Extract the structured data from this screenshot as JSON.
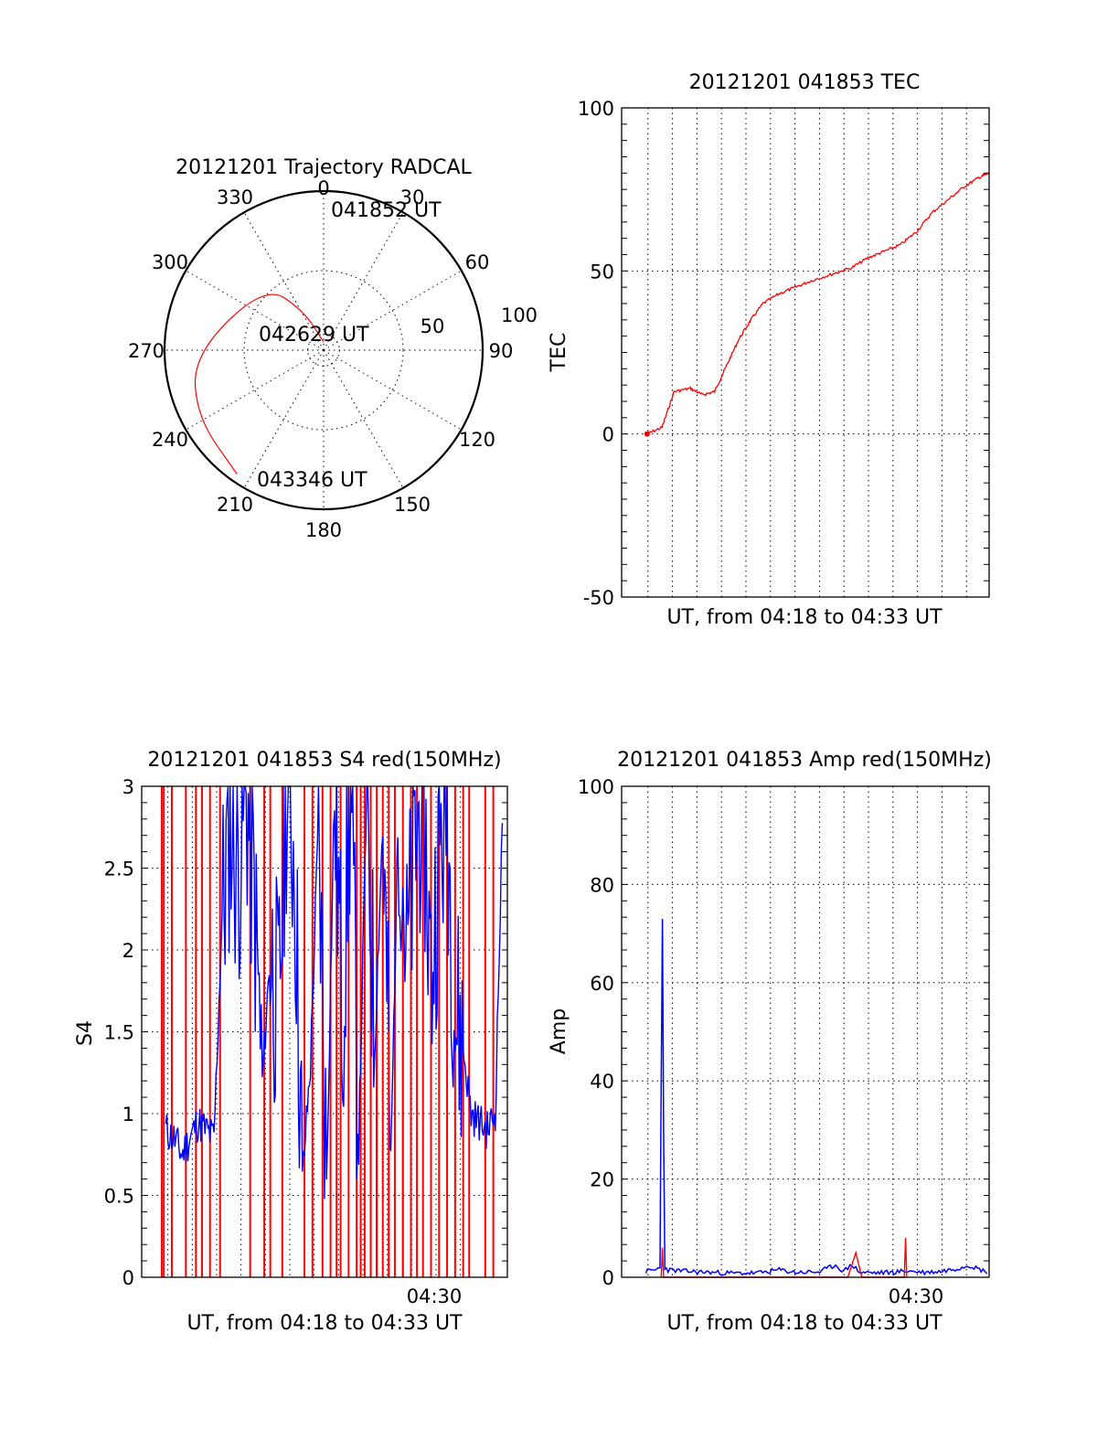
{
  "chart_data": [
    {
      "type": "polar",
      "title": "20121201 Trajectory RADCAL",
      "angle_labels": [
        "0",
        "30",
        "60",
        "90",
        "120",
        "150",
        "180",
        "210",
        "240",
        "270",
        "300",
        "330"
      ],
      "radius_labels": [
        "50",
        "100"
      ],
      "rlim": [
        0,
        100
      ],
      "annotations": [
        "041852 UT",
        "042629 UT",
        "043346 UT"
      ],
      "series": [
        {
          "color": "#ff0000",
          "points_az_el": [
            [
              1,
              95
            ],
            [
              333,
              72
            ],
            [
              318,
              45
            ],
            [
              268,
              18
            ],
            [
              242,
              10
            ],
            [
              215,
              5
            ]
          ]
        }
      ]
    },
    {
      "type": "line",
      "title": "20121201 041853 TEC",
      "ylabel": "TEC",
      "xlabel": "UT, from 04:18 to 04:33 UT",
      "ylim": [
        -50,
        100
      ],
      "xlim": [
        "04:17:50",
        "04:33:00"
      ],
      "yticks": [
        "-50",
        "0",
        "50",
        "100"
      ],
      "grid": true,
      "series": [
        {
          "color": "#ff0000",
          "x": [
            "04:18:53",
            "04:19:30",
            "04:20:00",
            "04:20:40",
            "04:21:10",
            "04:21:40",
            "04:22:10",
            "04:22:40",
            "04:23:10",
            "04:23:40",
            "04:24:20",
            "04:25:00",
            "04:25:40",
            "04:26:30",
            "04:27:20",
            "04:28:00",
            "04:28:40",
            "04:29:20",
            "04:30:00",
            "04:30:40",
            "04:31:20",
            "04:32:00",
            "04:32:40",
            "04:33:00"
          ],
          "y": [
            0,
            2,
            13,
            14,
            12,
            13,
            21,
            29,
            35,
            40,
            43,
            45,
            47,
            49,
            51,
            54,
            56,
            58,
            62,
            68,
            72,
            76,
            79,
            80
          ]
        }
      ]
    },
    {
      "type": "line",
      "title": "20121201 041853 S4 red(150MHz)",
      "ylabel": "S4",
      "xlabel": "UT, from 04:18 to 04:33 UT",
      "ylim": [
        0,
        3
      ],
      "xlim": [
        "04:17:50",
        "04:33:00"
      ],
      "yticks": [
        "0",
        "0.5",
        "1",
        "1.5",
        "2",
        "2.5",
        "3"
      ],
      "xtick_label": "04:30",
      "grid": true,
      "series": [
        {
          "color": "#0000ff",
          "x": [
            "04:18:50",
            "04:19:10",
            "04:19:30",
            "04:19:50",
            "04:20:10",
            "04:20:30",
            "04:20:50",
            "04:21:10",
            "04:21:30",
            "04:21:50",
            "04:22:10",
            "04:22:30",
            "04:22:50",
            "04:23:10",
            "04:23:30",
            "04:23:50",
            "04:24:10",
            "04:24:30",
            "04:24:50",
            "04:25:10",
            "04:25:30",
            "04:25:50",
            "04:26:10",
            "04:26:30",
            "04:26:50",
            "04:27:10",
            "04:27:30",
            "04:27:50",
            "04:28:10",
            "04:28:30",
            "04:28:50",
            "04:29:10",
            "04:29:30",
            "04:29:50",
            "04:30:10",
            "04:30:30",
            "04:30:50",
            "04:31:10",
            "04:31:30",
            "04:31:50",
            "04:32:10",
            "04:32:30",
            "04:32:50"
          ],
          "y": [
            0.9,
            0.85,
            0.75,
            0.85,
            0.95,
            0.9,
            0.85,
            2.2,
            2.8,
            2.5,
            3.0,
            2.3,
            1.2,
            2.0,
            1.6,
            3.0,
            2.6,
            0.6,
            1.3,
            2.8,
            0.6,
            3.0,
            1.6,
            3.0,
            0.8,
            3.0,
            1.4,
            2.8,
            0.7,
            3.0,
            1.9,
            2.6,
            3.0,
            1.8,
            2.6,
            2.9,
            1.6,
            1.4,
            1.0,
            0.95,
            0.9,
            1.0,
            3.0
          ]
        },
        {
          "color": "#ff0000",
          "x": [
            "04:18:40",
            "04:18:45",
            "04:19:05",
            "04:19:40",
            "04:20:05",
            "04:20:20",
            "04:20:40",
            "04:21:05",
            "04:22:20",
            "04:22:55",
            "04:23:10",
            "04:23:40",
            "04:24:35",
            "04:24:55",
            "04:25:20",
            "04:25:40",
            "04:25:55",
            "04:26:05",
            "04:26:25",
            "04:26:45",
            "04:26:55",
            "04:27:05",
            "04:27:20",
            "04:27:35",
            "04:27:50",
            "04:28:05",
            "04:28:20",
            "04:28:40",
            "04:29:00",
            "04:29:15",
            "04:29:30",
            "04:29:50",
            "04:30:10",
            "04:30:30",
            "04:30:50",
            "04:31:10",
            "04:31:25",
            "04:32:05",
            "04:32:25"
          ],
          "y": [
            3,
            3,
            3,
            3,
            3,
            3,
            3,
            3,
            3,
            3,
            3,
            3,
            3,
            3,
            3,
            3,
            3,
            3,
            3,
            3,
            3,
            3,
            3,
            3,
            3,
            3,
            3,
            3,
            3,
            3,
            3,
            3,
            3,
            3,
            3,
            3,
            3,
            3,
            3
          ]
        }
      ]
    },
    {
      "type": "line",
      "title": "20121201 041853 Amp red(150MHz)",
      "ylabel": "Amp",
      "xlabel": "UT, from 04:18 to 04:33 UT",
      "ylim": [
        0,
        100
      ],
      "xlim": [
        "04:17:50",
        "04:33:00"
      ],
      "yticks": [
        "0",
        "20",
        "40",
        "60",
        "80",
        "100"
      ],
      "xtick_label": "04:30",
      "grid": true,
      "series": [
        {
          "color": "#0000ff",
          "x": [
            "04:18:50",
            "04:19:15",
            "04:19:25",
            "04:19:28",
            "04:19:31",
            "04:19:34",
            "04:19:37",
            "04:19:45",
            "04:20:30",
            "04:21:30",
            "04:22:30",
            "04:23:30",
            "04:24:20",
            "04:25:00",
            "04:26:00",
            "04:26:40",
            "04:27:00",
            "04:27:20",
            "04:27:40",
            "04:28:20",
            "04:29:00",
            "04:29:35",
            "04:30:20",
            "04:31:00",
            "04:31:40",
            "04:32:10",
            "04:32:40",
            "04:33:00"
          ],
          "y": [
            1.2,
            1.5,
            2,
            40,
            73,
            30,
            2,
            1.5,
            1.2,
            1.0,
            0.8,
            0.9,
            1.5,
            1.0,
            1.1,
            2.5,
            1.2,
            2.6,
            1.0,
            0.9,
            1.0,
            1.3,
            1.0,
            1.2,
            1.8,
            2.5,
            1.5,
            1.0
          ]
        },
        {
          "color": "#ff0000",
          "x": [
            "04:19:28",
            "04:19:31",
            "04:19:34",
            "04:27:10",
            "04:27:30",
            "04:27:45",
            "04:28:00",
            "04:29:30",
            "04:29:33",
            "04:29:36"
          ],
          "y": [
            0,
            6,
            0,
            0,
            5,
            0,
            0,
            0,
            8,
            0
          ]
        }
      ]
    }
  ]
}
